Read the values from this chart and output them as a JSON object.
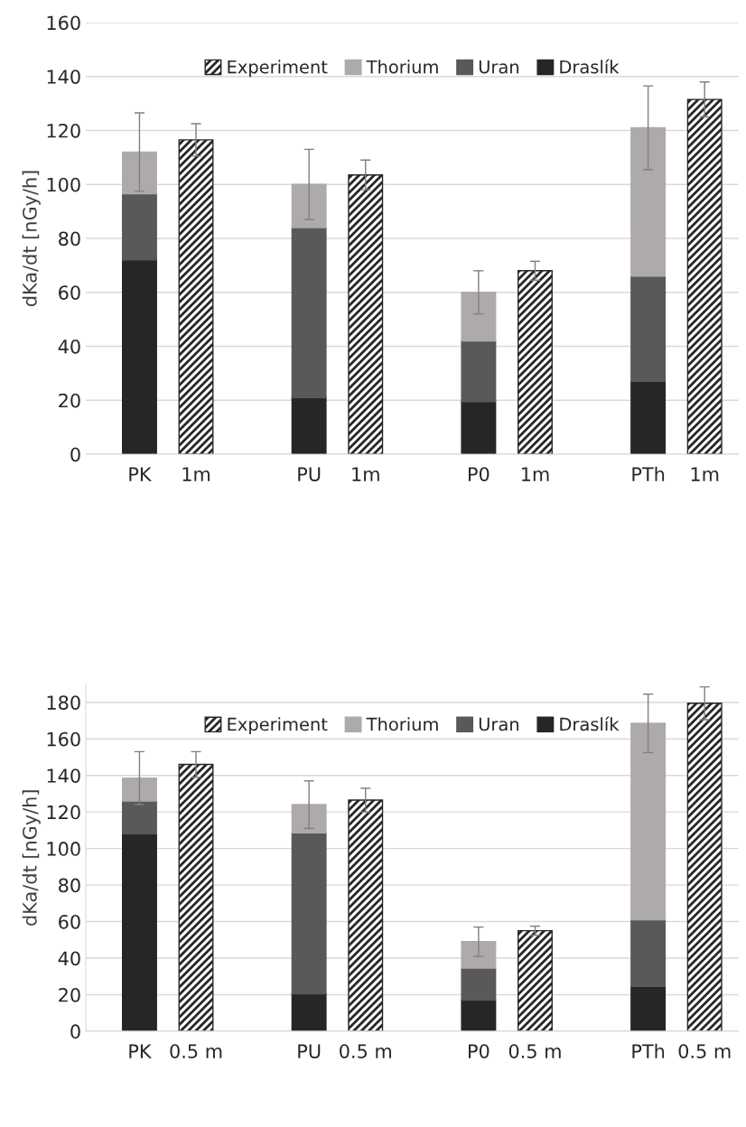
{
  "chart_data": [
    {
      "type": "bar",
      "stacked": true,
      "ylabel": "dKa/dt [nGy/h]",
      "categories": [
        "PK",
        "1m",
        null,
        "PU",
        "1m",
        null,
        "P0",
        "1m",
        null,
        "PTh",
        "1m"
      ],
      "series": [
        {
          "name": "Draslík",
          "color": "#262626",
          "values": [
            72,
            null,
            null,
            21,
            null,
            null,
            19.5,
            null,
            null,
            27,
            null
          ]
        },
        {
          "name": "Uran",
          "color": "#595959",
          "values": [
            24.5,
            null,
            null,
            63,
            null,
            null,
            22.5,
            null,
            null,
            39,
            null
          ]
        },
        {
          "name": "Thorium",
          "color": "#aeaaaa",
          "values": [
            15.5,
            null,
            null,
            16,
            null,
            null,
            18,
            null,
            null,
            55,
            null
          ],
          "errors": [
            14.5,
            null,
            null,
            13,
            null,
            null,
            8,
            null,
            null,
            15.5,
            null
          ]
        },
        {
          "name": "Experiment",
          "color": "#262626",
          "values": [
            null,
            116.5,
            null,
            null,
            103.5,
            null,
            null,
            68,
            null,
            null,
            131.5
          ],
          "errors": [
            null,
            6,
            null,
            null,
            5.5,
            null,
            null,
            3.5,
            null,
            null,
            6.5
          ]
        }
      ],
      "ylim": [
        0,
        160
      ],
      "yticks": [
        0,
        20,
        40,
        60,
        80,
        100,
        120,
        140,
        160
      ],
      "grid": "y",
      "legend": "top"
    },
    {
      "type": "bar",
      "stacked": true,
      "ylabel": "dKa/dt [nGy/h]",
      "categories": [
        "PK",
        "0.5 m",
        null,
        "PU",
        "0.5 m",
        null,
        "P0",
        "0.5 m",
        null,
        "PTh",
        "0.5 m"
      ],
      "series": [
        {
          "name": "Draslík",
          "color": "#262626",
          "values": [
            108,
            null,
            null,
            20.5,
            null,
            null,
            17,
            null,
            null,
            24.5,
            null
          ]
        },
        {
          "name": "Uran",
          "color": "#595959",
          "values": [
            18,
            null,
            null,
            88,
            null,
            null,
            17.5,
            null,
            null,
            36.5,
            null
          ]
        },
        {
          "name": "Thorium",
          "color": "#aeaaaa",
          "values": [
            12.5,
            null,
            null,
            15.5,
            null,
            null,
            14.5,
            null,
            null,
            107.5,
            null
          ],
          "errors": [
            14.5,
            null,
            null,
            13,
            null,
            null,
            8,
            null,
            null,
            16,
            null
          ]
        },
        {
          "name": "Experiment",
          "color": "#262626",
          "values": [
            null,
            146,
            null,
            null,
            126.5,
            null,
            null,
            55,
            null,
            null,
            179.5
          ],
          "errors": [
            null,
            7,
            null,
            null,
            6.5,
            null,
            null,
            2.5,
            null,
            null,
            9
          ]
        }
      ],
      "ylim": [
        0,
        190
      ],
      "yticks": [
        0,
        20,
        40,
        60,
        80,
        100,
        120,
        140,
        160,
        180
      ],
      "grid": "y",
      "legend": "top"
    }
  ]
}
